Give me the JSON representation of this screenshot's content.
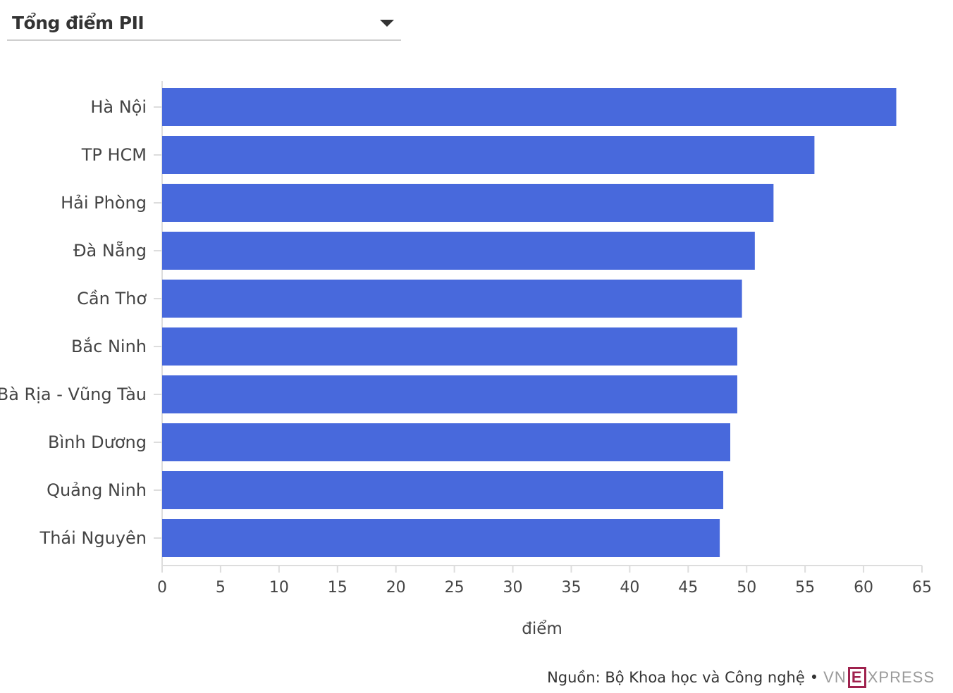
{
  "dropdown": {
    "selected": "Tổng điểm PII",
    "caret_icon": "caret-down-icon"
  },
  "chart_data": {
    "type": "bar",
    "orientation": "horizontal",
    "categories": [
      "Hà Nội",
      "TP HCM",
      "Hải Phòng",
      "Đà Nẵng",
      "Cần Thơ",
      "Bắc Ninh",
      "Bà Rịa - Vũng Tàu",
      "Bình Dương",
      "Quảng Ninh",
      "Thái Nguyên"
    ],
    "values": [
      62.8,
      55.8,
      52.3,
      50.7,
      49.6,
      49.2,
      49.2,
      48.6,
      48.0,
      47.7
    ],
    "xlabel": "điểm",
    "xlim": [
      0,
      65
    ],
    "xticks": [
      "0",
      "5",
      "10",
      "15",
      "20",
      "25",
      "30",
      "35",
      "40",
      "45",
      "50",
      "55",
      "60",
      "65"
    ],
    "bar_color": "#4869dc"
  },
  "footer": {
    "source": "Nguồn: Bộ Khoa học và Công nghệ",
    "separator": "•",
    "brand_left": "VN",
    "brand_mid": "E",
    "brand_right": "XPRESS"
  }
}
